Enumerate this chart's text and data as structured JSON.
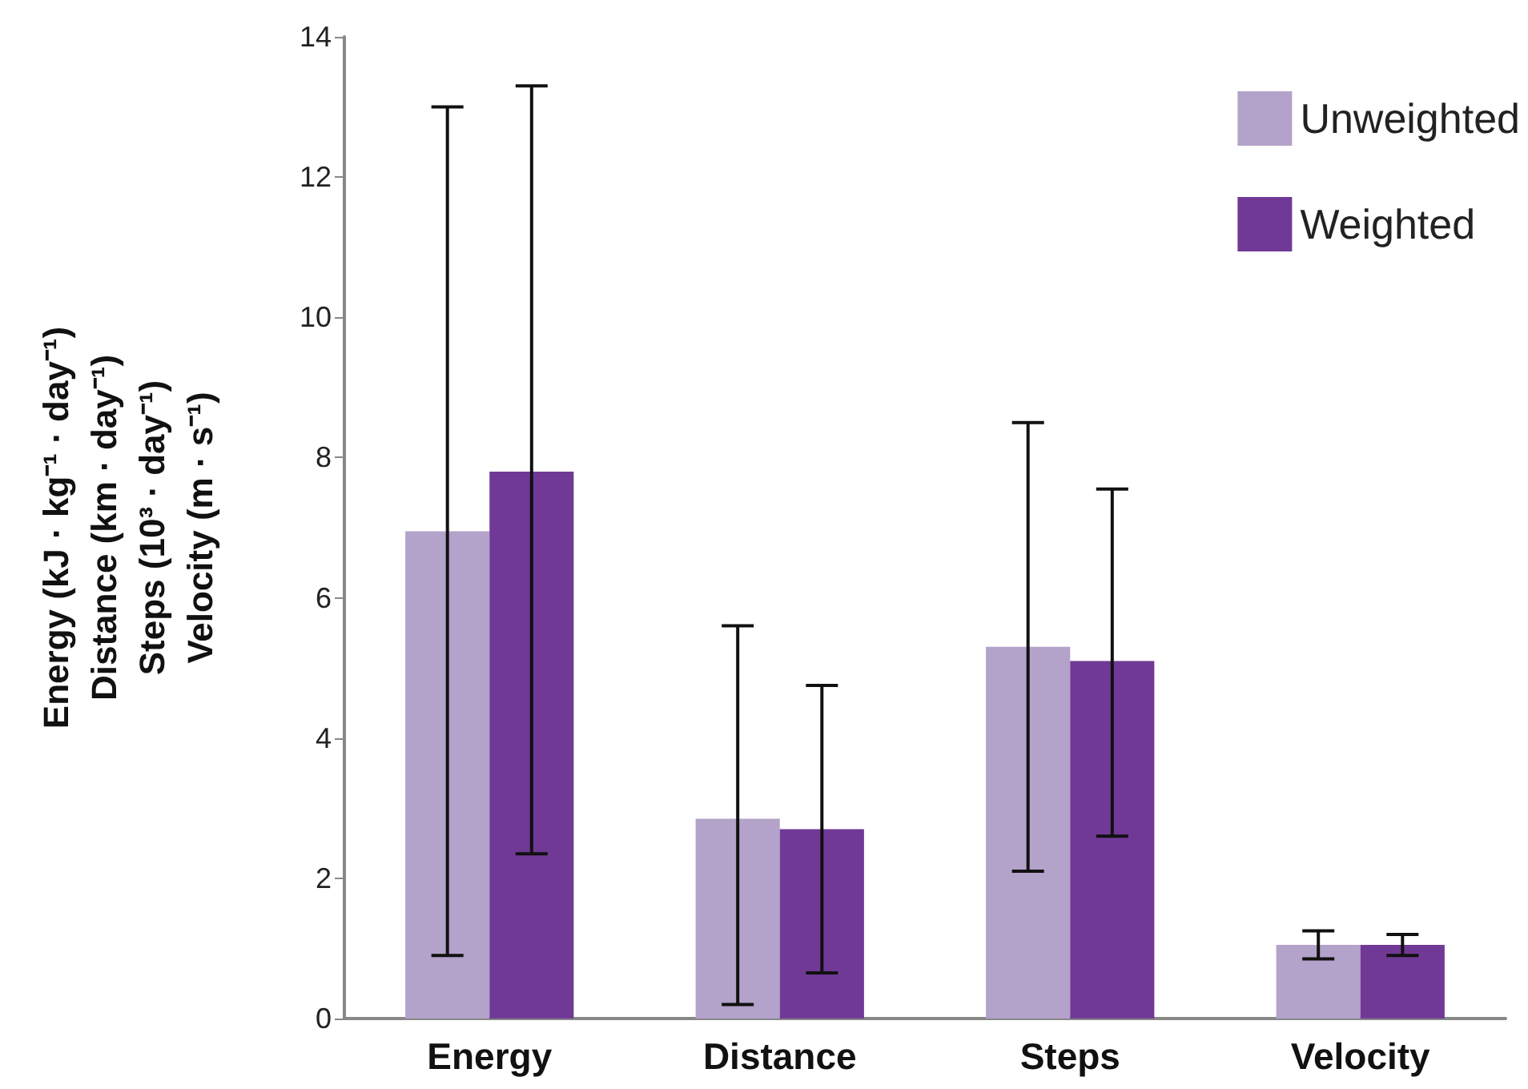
{
  "chart_data": {
    "type": "bar",
    "ylabel": "Energy (kJ · kg⁻¹ · day⁻¹)\nDistance (km · day⁻¹)\nSteps (10³ · day⁻¹)\nVelocity (m · s⁻¹)",
    "categories": [
      "Energy",
      "Distance",
      "Steps",
      "Velocity"
    ],
    "series": [
      {
        "name": "Unweighted",
        "color": "#b3a2c9",
        "values": [
          6.95,
          2.85,
          5.3,
          1.05
        ],
        "errors": [
          [
            0.9,
            13.0
          ],
          [
            0.2,
            5.6
          ],
          [
            2.1,
            8.5
          ],
          [
            0.85,
            1.25
          ]
        ]
      },
      {
        "name": "Weighted",
        "color": "#703996",
        "values": [
          7.8,
          2.7,
          5.1,
          1.05
        ],
        "errors": [
          [
            2.35,
            13.3
          ],
          [
            0.65,
            4.75
          ],
          [
            2.6,
            7.55
          ],
          [
            0.9,
            1.2
          ]
        ]
      }
    ],
    "ylim": [
      0,
      14
    ],
    "yticks": [
      0,
      2,
      4,
      6,
      8,
      10,
      12,
      14
    ],
    "grid": false,
    "legend": "top right"
  }
}
